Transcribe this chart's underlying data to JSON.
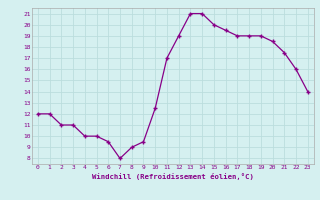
{
  "x": [
    0,
    1,
    2,
    3,
    4,
    5,
    6,
    7,
    8,
    9,
    10,
    11,
    12,
    13,
    14,
    15,
    16,
    17,
    18,
    19,
    20,
    21,
    22,
    23
  ],
  "y": [
    12,
    12,
    11,
    11,
    10,
    10,
    9.5,
    8,
    9,
    9.5,
    12.5,
    17,
    19,
    21,
    21,
    20,
    19.5,
    19,
    19,
    19,
    18.5,
    17.5,
    16,
    14
  ],
  "line_color": "#880088",
  "marker": "+",
  "bg_color": "#d5f0f0",
  "grid_color": "#bbdddd",
  "xlabel": "Windchill (Refroidissement éolien,°C)",
  "yticks": [
    8,
    9,
    10,
    11,
    12,
    13,
    14,
    15,
    16,
    17,
    18,
    19,
    20,
    21
  ],
  "xticks": [
    0,
    1,
    2,
    3,
    4,
    5,
    6,
    7,
    8,
    9,
    10,
    11,
    12,
    13,
    14,
    15,
    16,
    17,
    18,
    19,
    20,
    21,
    22,
    23
  ],
  "xlim": [
    -0.5,
    23.5
  ],
  "ylim": [
    7.5,
    21.5
  ],
  "font_color": "#880088"
}
